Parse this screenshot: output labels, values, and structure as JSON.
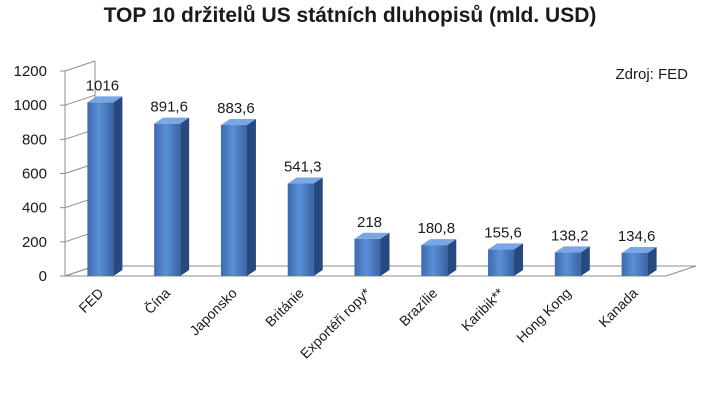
{
  "chart_data": {
    "type": "bar",
    "title": "TOP 10 držitelů US státních dluhopisů (mld. USD)",
    "annotation": "Zdroj: FED",
    "categories": [
      "FED",
      "Čína",
      "Japonsko",
      "Británie",
      "Exportéři ropy*",
      "Brazílie",
      "Karibik**",
      "Hong Kong",
      "Kanada"
    ],
    "values": [
      1016,
      891.6,
      883.6,
      541.3,
      218,
      180.8,
      155.6,
      138.2,
      134.6
    ],
    "data_labels": [
      "1016",
      "891,6",
      "883,6",
      "541,3",
      "218",
      "180,8",
      "155,6",
      "138,2",
      "134,6"
    ],
    "yticks": [
      "0",
      "200",
      "400",
      "600",
      "800",
      "1000",
      "1200"
    ],
    "ylim": [
      0,
      1200
    ],
    "grid": false,
    "bar_color": "#4a7ebb"
  }
}
